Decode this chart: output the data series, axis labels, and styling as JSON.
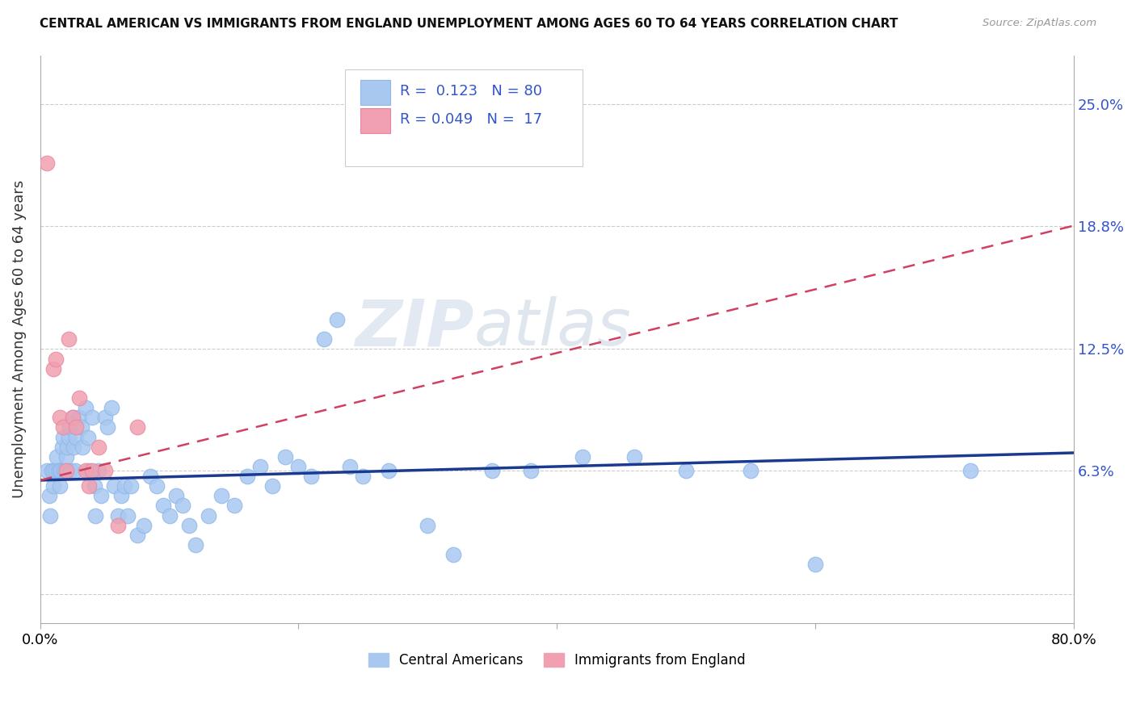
{
  "title": "CENTRAL AMERICAN VS IMMIGRANTS FROM ENGLAND UNEMPLOYMENT AMONG AGES 60 TO 64 YEARS CORRELATION CHART",
  "source": "Source: ZipAtlas.com",
  "ylabel": "Unemployment Among Ages 60 to 64 years",
  "xlabel": "",
  "xlim": [
    0.0,
    0.8
  ],
  "ylim": [
    -0.015,
    0.275
  ],
  "yticks": [
    0.0,
    0.063,
    0.125,
    0.188,
    0.25
  ],
  "ytick_labels": [
    "",
    "6.3%",
    "12.5%",
    "18.8%",
    "25.0%"
  ],
  "xticks": [
    0.0,
    0.2,
    0.4,
    0.6,
    0.8
  ],
  "xtick_labels": [
    "0.0%",
    "",
    "",
    "",
    "80.0%"
  ],
  "blue_R": 0.123,
  "blue_N": 80,
  "pink_R": 0.049,
  "pink_N": 17,
  "blue_color": "#a8c8f0",
  "pink_color": "#f0a0b0",
  "blue_line_color": "#1a3a8f",
  "pink_line_color": "#d04060",
  "watermark": "ZIPatlas",
  "legend_label_blue": "Central Americans",
  "legend_label_pink": "Immigrants from England",
  "blue_line_x": [
    0.0,
    0.8
  ],
  "blue_line_y": [
    0.058,
    0.072
  ],
  "pink_line_x": [
    0.0,
    0.8
  ],
  "pink_line_y": [
    0.058,
    0.188
  ],
  "blue_scatter_x": [
    0.005,
    0.007,
    0.008,
    0.009,
    0.01,
    0.01,
    0.012,
    0.013,
    0.014,
    0.015,
    0.015,
    0.016,
    0.017,
    0.018,
    0.018,
    0.019,
    0.02,
    0.02,
    0.021,
    0.022,
    0.023,
    0.024,
    0.025,
    0.026,
    0.027,
    0.028,
    0.03,
    0.032,
    0.033,
    0.035,
    0.037,
    0.038,
    0.04,
    0.042,
    0.043,
    0.045,
    0.047,
    0.05,
    0.052,
    0.055,
    0.057,
    0.06,
    0.063,
    0.065,
    0.068,
    0.07,
    0.075,
    0.08,
    0.085,
    0.09,
    0.095,
    0.1,
    0.105,
    0.11,
    0.115,
    0.12,
    0.13,
    0.14,
    0.15,
    0.16,
    0.17,
    0.18,
    0.19,
    0.2,
    0.21,
    0.22,
    0.23,
    0.24,
    0.25,
    0.27,
    0.3,
    0.32,
    0.35,
    0.38,
    0.42,
    0.46,
    0.5,
    0.55,
    0.6,
    0.72
  ],
  "blue_scatter_y": [
    0.063,
    0.05,
    0.04,
    0.063,
    0.055,
    0.063,
    0.063,
    0.07,
    0.063,
    0.055,
    0.063,
    0.063,
    0.075,
    0.08,
    0.063,
    0.063,
    0.063,
    0.07,
    0.075,
    0.08,
    0.085,
    0.063,
    0.09,
    0.075,
    0.063,
    0.08,
    0.09,
    0.085,
    0.075,
    0.095,
    0.08,
    0.063,
    0.09,
    0.055,
    0.04,
    0.063,
    0.05,
    0.09,
    0.085,
    0.095,
    0.055,
    0.04,
    0.05,
    0.055,
    0.04,
    0.055,
    0.03,
    0.035,
    0.06,
    0.055,
    0.045,
    0.04,
    0.05,
    0.045,
    0.035,
    0.025,
    0.04,
    0.05,
    0.045,
    0.06,
    0.065,
    0.055,
    0.07,
    0.065,
    0.06,
    0.13,
    0.14,
    0.065,
    0.06,
    0.063,
    0.035,
    0.02,
    0.063,
    0.063,
    0.07,
    0.07,
    0.063,
    0.063,
    0.015,
    0.063
  ],
  "pink_scatter_x": [
    0.005,
    0.01,
    0.012,
    0.015,
    0.018,
    0.02,
    0.022,
    0.025,
    0.028,
    0.03,
    0.035,
    0.038,
    0.04,
    0.045,
    0.05,
    0.06,
    0.075
  ],
  "pink_scatter_y": [
    0.22,
    0.115,
    0.12,
    0.09,
    0.085,
    0.063,
    0.13,
    0.09,
    0.085,
    0.1,
    0.063,
    0.055,
    0.063,
    0.075,
    0.063,
    0.035,
    0.085
  ]
}
